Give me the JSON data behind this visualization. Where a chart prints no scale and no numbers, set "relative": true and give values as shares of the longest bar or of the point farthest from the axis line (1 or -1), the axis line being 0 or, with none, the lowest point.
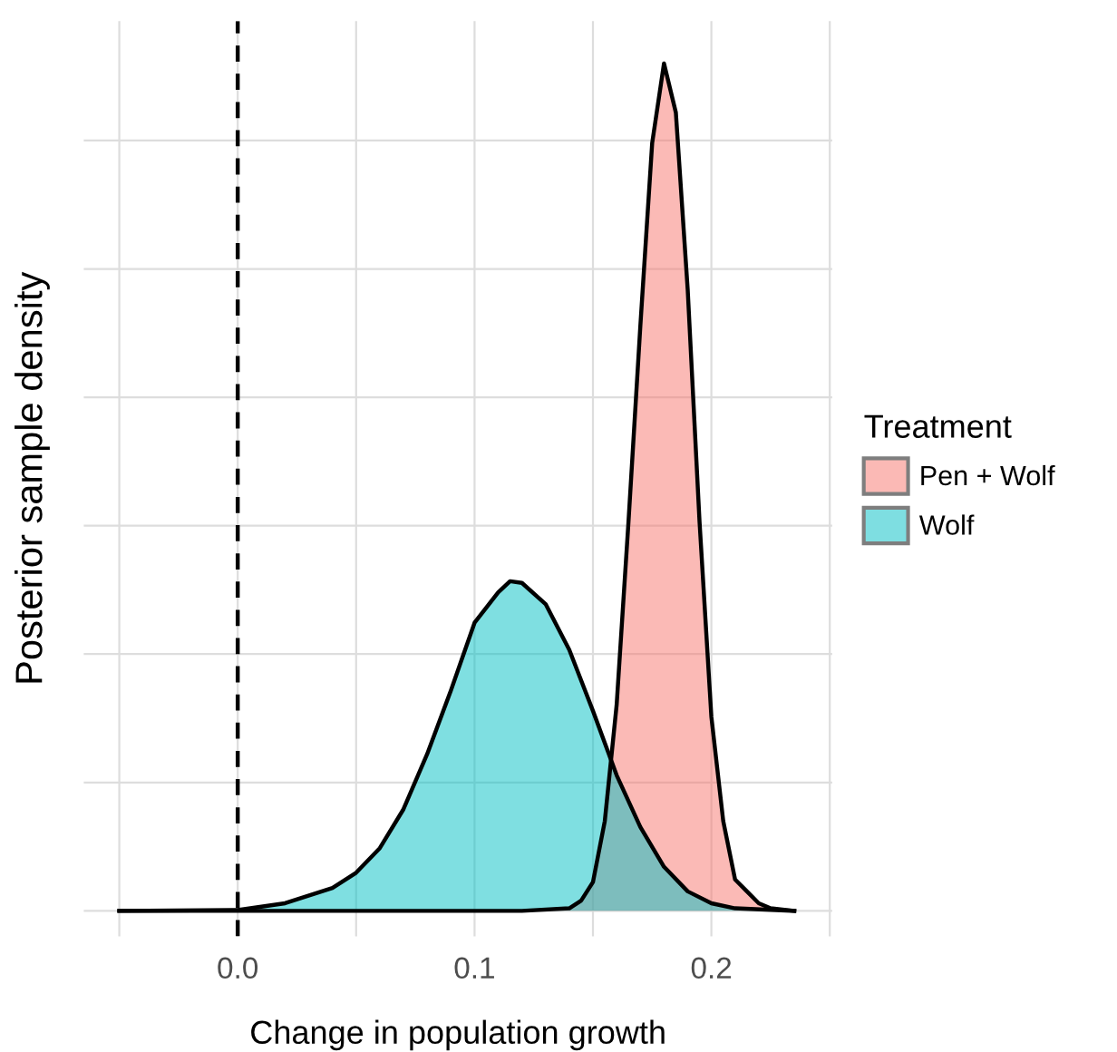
{
  "chart_data": {
    "type": "area",
    "relative": true,
    "xlabel": "Change in population growth",
    "ylabel": "Posterior sample density",
    "legend_title": "Treatment",
    "xlim": [
      -0.065,
      0.251
    ],
    "xticks": [
      {
        "value": -0.05,
        "label": null
      },
      {
        "value": 0.0,
        "label": "0.0"
      },
      {
        "value": 0.05,
        "label": null
      },
      0.1,
      {
        "value": 0.15,
        "label": null
      },
      0.2,
      {
        "value": 0.25,
        "label": null
      }
    ],
    "grid": true,
    "legend": "right",
    "ref_lines": [
      {
        "axis": "x",
        "value": 0.0,
        "line_style": "dashed",
        "color": "#000000"
      }
    ],
    "series": [
      {
        "name": "Pen + Wolf",
        "color": "#f8766d",
        "x": [
          -0.05,
          0.12,
          0.14,
          0.145,
          0.15,
          0.155,
          0.16,
          0.165,
          0.17,
          0.175,
          0.18,
          0.185,
          0.19,
          0.195,
          0.2,
          0.205,
          0.21,
          0.215,
          0.22,
          0.225,
          0.235
        ],
        "values": [
          0,
          0,
          0.003,
          0.012,
          0.034,
          0.106,
          0.243,
          0.459,
          0.69,
          0.906,
          1,
          0.942,
          0.733,
          0.459,
          0.229,
          0.106,
          0.037,
          0.023,
          0.009,
          0.003,
          0
        ]
      },
      {
        "name": "Wolf",
        "color": "#00bfc4",
        "x": [
          -0.05,
          0.0,
          0.02,
          0.04,
          0.05,
          0.06,
          0.07,
          0.08,
          0.09,
          0.1,
          0.11,
          0.115,
          0.12,
          0.13,
          0.14,
          0.15,
          0.16,
          0.17,
          0.18,
          0.19,
          0.2,
          0.21,
          0.235
        ],
        "values": [
          0,
          0.001,
          0.009,
          0.027,
          0.045,
          0.074,
          0.12,
          0.185,
          0.26,
          0.34,
          0.376,
          0.389,
          0.387,
          0.362,
          0.308,
          0.236,
          0.16,
          0.099,
          0.052,
          0.023,
          0.009,
          0.003,
          0
        ]
      }
    ]
  }
}
